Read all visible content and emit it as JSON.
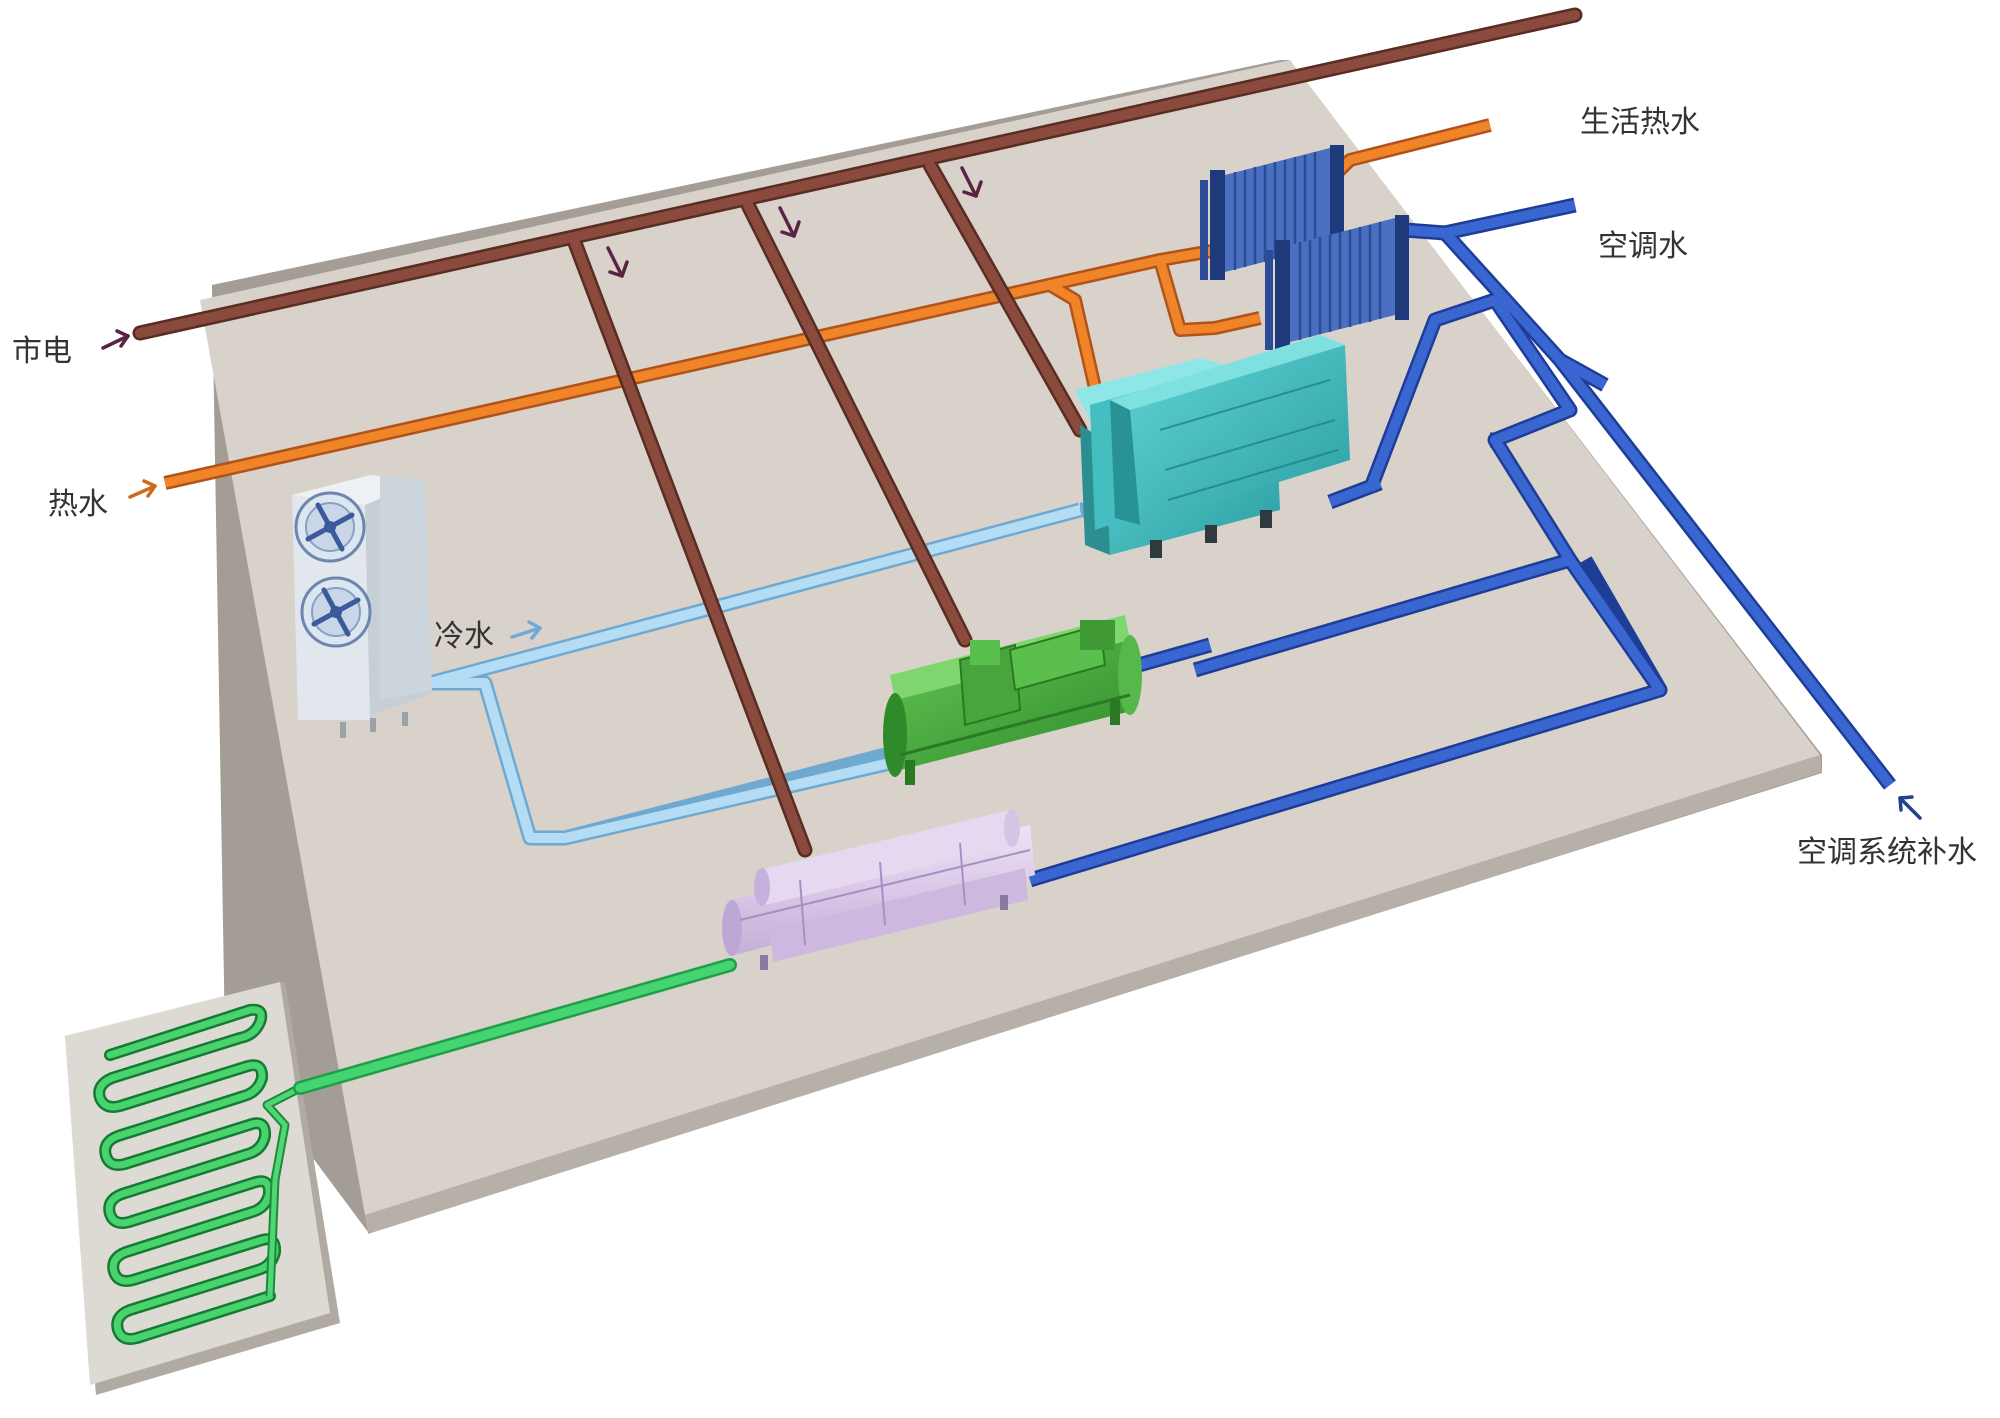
{
  "labels": {
    "city_power": "市电",
    "hot_water": "热水",
    "cold_water": "冷水",
    "domestic_hot_water": "生活热水",
    "ac_water": "空调水",
    "ac_makeup_water": "空调系统补水"
  },
  "colors": {
    "city_power": "#7a4236",
    "hot_water": "#e8751f",
    "cold_water": "#9ccfee",
    "ac_water": "#2e58c2",
    "ground_loop": "#35c860",
    "platform": "#d8d2cb",
    "cooling_tower": "#dfe5ea",
    "absorption_chiller": "#3fbcc0",
    "screw_chiller": "#4bb041",
    "heat_pump": "#d9c7ea",
    "plate_exchanger": "#3557a8",
    "ground_panel": "#ddd9d3"
  },
  "icons": {
    "cooling_tower": "fan-icon",
    "plate_exchanger": "plate-heat-exchanger-icon",
    "absorption_chiller": "absorption-chiller-icon",
    "screw_chiller": "screw-chiller-icon",
    "heat_pump": "ground-source-heat-pump-icon",
    "ground_loop": "ground-loop-coil-icon"
  }
}
